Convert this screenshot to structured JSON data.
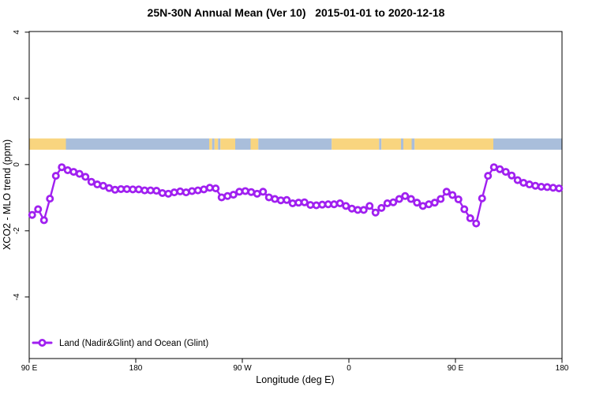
{
  "chart_data": {
    "type": "line",
    "title": "25N-30N Annual Mean (Ver 10)   2015-01-01 to 2020-12-18",
    "xlabel": "Longitude (deg E)",
    "ylabel": "XCO2 - MLO trend (ppm)",
    "xlim": [
      90,
      540
    ],
    "ylim": [
      -5.86,
      4.02
    ],
    "grid": false,
    "legend_position": "bottom-left",
    "x_ticks": [
      {
        "value": 90,
        "label": "90 E"
      },
      {
        "value": 180,
        "label": "180"
      },
      {
        "value": 270,
        "label": "90 W"
      },
      {
        "value": 360,
        "label": "0"
      },
      {
        "value": 450,
        "label": "90 E"
      },
      {
        "value": 540,
        "label": "180"
      }
    ],
    "y_ticks": [
      {
        "value": 4,
        "label": "4"
      },
      {
        "value": 2,
        "label": "2"
      },
      {
        "value": 0,
        "label": "0"
      },
      {
        "value": -2,
        "label": "-2"
      },
      {
        "value": -4,
        "label": "-4"
      }
    ],
    "surface_band": {
      "description": "land-ocean indicator strip along longitude",
      "y_from": 0.45,
      "y_to": 0.79,
      "land_color": "#F9D57F",
      "ocean_color": "#A9BEDB",
      "segments": [
        {
          "from": 90,
          "to": 121,
          "type": "land"
        },
        {
          "from": 121,
          "to": 242,
          "type": "ocean"
        },
        {
          "from": 242,
          "to": 244.5,
          "type": "land"
        },
        {
          "from": 244.5,
          "to": 246.5,
          "type": "ocean"
        },
        {
          "from": 246.5,
          "to": 249.5,
          "type": "land"
        },
        {
          "from": 249.5,
          "to": 251.5,
          "type": "ocean"
        },
        {
          "from": 251.5,
          "to": 264,
          "type": "land"
        },
        {
          "from": 264,
          "to": 277,
          "type": "ocean"
        },
        {
          "from": 277,
          "to": 283.5,
          "type": "land"
        },
        {
          "from": 283.5,
          "to": 345.5,
          "type": "ocean"
        },
        {
          "from": 345.5,
          "to": 385.5,
          "type": "land"
        },
        {
          "from": 385.5,
          "to": 387.5,
          "type": "ocean"
        },
        {
          "from": 387.5,
          "to": 404,
          "type": "land"
        },
        {
          "from": 404,
          "to": 406,
          "type": "ocean"
        },
        {
          "from": 406,
          "to": 413,
          "type": "land"
        },
        {
          "from": 413,
          "to": 415.5,
          "type": "ocean"
        },
        {
          "from": 415.5,
          "to": 482,
          "type": "land"
        },
        {
          "from": 482,
          "to": 540,
          "type": "ocean"
        }
      ]
    },
    "series": [
      {
        "name": "Land (Nadir&Glint) and Ocean (Glint)",
        "color": "#A020F0",
        "marker": "open-circle",
        "x": [
          92.5,
          97.5,
          102.5,
          107.5,
          112.5,
          117.5,
          122.5,
          127.5,
          132.5,
          137.5,
          142.5,
          147.5,
          152.5,
          157.5,
          162.5,
          167.5,
          172.5,
          177.5,
          182.5,
          187.5,
          192.5,
          197.5,
          202.5,
          207.5,
          212.5,
          217.5,
          222.5,
          227.5,
          232.5,
          237.5,
          242.5,
          247.5,
          252.5,
          257.5,
          262.5,
          267.5,
          272.5,
          277.5,
          282.5,
          287.5,
          292.5,
          297.5,
          302.5,
          307.5,
          312.5,
          317.5,
          322.5,
          327.5,
          332.5,
          337.5,
          342.5,
          347.5,
          352.5,
          357.5,
          362.5,
          367.5,
          372.5,
          377.5,
          382.5,
          387.5,
          392.5,
          397.5,
          402.5,
          407.5,
          412.5,
          417.5,
          422.5,
          427.5,
          432.5,
          437.5,
          442.5,
          447.5,
          452.5,
          457.5,
          462.5,
          467.5,
          472.5,
          477.5,
          482.5,
          487.5,
          492.5,
          497.5,
          502.5,
          507.5,
          512.5,
          517.5,
          522.5,
          527.5,
          532.5,
          537.5
        ],
        "y": [
          -1.52,
          -1.35,
          -1.68,
          -1.03,
          -0.34,
          -0.08,
          -0.17,
          -0.22,
          -0.28,
          -0.37,
          -0.52,
          -0.6,
          -0.64,
          -0.71,
          -0.76,
          -0.74,
          -0.74,
          -0.75,
          -0.75,
          -0.78,
          -0.78,
          -0.79,
          -0.86,
          -0.88,
          -0.84,
          -0.81,
          -0.84,
          -0.8,
          -0.78,
          -0.75,
          -0.7,
          -0.72,
          -0.99,
          -0.95,
          -0.91,
          -0.82,
          -0.8,
          -0.83,
          -0.88,
          -0.82,
          -0.99,
          -1.04,
          -1.08,
          -1.07,
          -1.17,
          -1.15,
          -1.14,
          -1.22,
          -1.23,
          -1.21,
          -1.2,
          -1.2,
          -1.17,
          -1.25,
          -1.33,
          -1.37,
          -1.37,
          -1.25,
          -1.45,
          -1.31,
          -1.17,
          -1.14,
          -1.04,
          -0.95,
          -1.04,
          -1.15,
          -1.25,
          -1.2,
          -1.15,
          -1.04,
          -0.82,
          -0.92,
          -1.05,
          -1.35,
          -1.62,
          -1.78,
          -1.02,
          -0.34,
          -0.08,
          -0.14,
          -0.22,
          -0.33,
          -0.47,
          -0.55,
          -0.6,
          -0.64,
          -0.67,
          -0.68,
          -0.7,
          -0.72
        ]
      }
    ]
  }
}
